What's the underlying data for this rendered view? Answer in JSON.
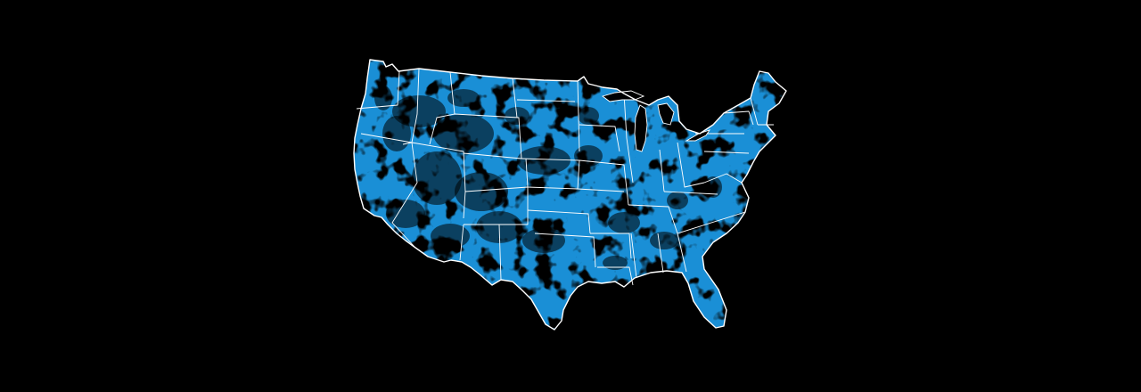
{
  "map": {
    "subject": "contiguous-united-states",
    "style": "coverage-map",
    "colors": {
      "background": "#000000",
      "coverage": "#1a8fd6",
      "borders": "#ffffff",
      "gaps": "#000000"
    }
  }
}
